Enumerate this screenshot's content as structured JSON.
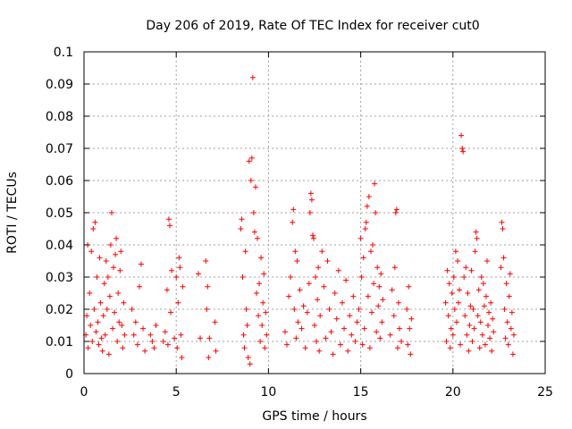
{
  "chart_data": {
    "type": "scatter",
    "title": "Day 206 of 2019, Rate Of TEC Index for receiver cut0",
    "xlabel": "GPS time / hours",
    "ylabel": "ROTI / TECUs",
    "xlim": [
      0,
      25
    ],
    "ylim": [
      0,
      0.1
    ],
    "x_ticks": [
      "0",
      "5",
      "10",
      "15",
      "20",
      "25"
    ],
    "y_ticks": [
      "0",
      "0.01",
      "0.02",
      "0.03",
      "0.04",
      "0.05",
      "0.06",
      "0.07",
      "0.08",
      "0.09",
      "0.1"
    ],
    "grid": true,
    "marker": "+",
    "color": "#ff0000",
    "series": [
      {
        "points": [
          [
            0.1,
            0.012
          ],
          [
            0.15,
            0.018
          ],
          [
            0.2,
            0.04
          ],
          [
            0.22,
            0.008
          ],
          [
            0.3,
            0.025
          ],
          [
            0.35,
            0.015
          ],
          [
            0.4,
            0.038
          ],
          [
            0.45,
            0.01
          ],
          [
            0.5,
            0.045
          ],
          [
            0.55,
            0.02
          ],
          [
            0.6,
            0.047
          ],
          [
            0.65,
            0.013
          ],
          [
            0.7,
            0.03
          ],
          [
            0.75,
            0.016
          ],
          [
            0.8,
            0.009
          ],
          [
            0.85,
            0.036
          ],
          [
            0.9,
            0.022
          ],
          [
            0.95,
            0.011
          ],
          [
            1.0,
            0.007
          ],
          [
            1.05,
            0.018
          ],
          [
            1.1,
            0.028
          ],
          [
            1.15,
            0.012
          ],
          [
            1.2,
            0.035
          ],
          [
            1.25,
            0.02
          ],
          [
            1.3,
            0.03
          ],
          [
            1.35,
            0.006
          ],
          [
            1.4,
            0.024
          ],
          [
            1.45,
            0.04
          ],
          [
            1.5,
            0.05
          ],
          [
            1.55,
            0.014
          ],
          [
            1.6,
            0.033
          ],
          [
            1.65,
            0.019
          ],
          [
            1.7,
            0.037
          ],
          [
            1.75,
            0.042
          ],
          [
            1.8,
            0.01
          ],
          [
            1.85,
            0.025
          ],
          [
            1.9,
            0.016
          ],
          [
            1.95,
            0.032
          ],
          [
            2.0,
            0.038
          ],
          [
            2.05,
            0.015
          ],
          [
            2.1,
            0.008
          ],
          [
            2.15,
            0.022
          ],
          [
            2.2,
            0.012
          ],
          [
            2.6,
            0.02
          ],
          [
            2.7,
            0.012
          ],
          [
            2.8,
            0.016
          ],
          [
            2.9,
            0.009
          ],
          [
            3.0,
            0.027
          ],
          [
            3.1,
            0.034
          ],
          [
            3.2,
            0.014
          ],
          [
            3.3,
            0.007
          ],
          [
            3.6,
            0.012
          ],
          [
            3.7,
            0.01
          ],
          [
            3.8,
            0.008
          ],
          [
            3.9,
            0.015
          ],
          [
            4.3,
            0.01
          ],
          [
            4.4,
            0.013
          ],
          [
            4.5,
            0.026
          ],
          [
            4.55,
            0.009
          ],
          [
            4.6,
            0.048
          ],
          [
            4.65,
            0.046
          ],
          [
            4.7,
            0.019
          ],
          [
            4.75,
            0.032
          ],
          [
            4.9,
            0.011
          ],
          [
            5.0,
            0.03
          ],
          [
            5.05,
            0.008
          ],
          [
            5.1,
            0.022
          ],
          [
            5.15,
            0.036
          ],
          [
            5.2,
            0.033
          ],
          [
            5.25,
            0.012
          ],
          [
            5.3,
            0.005
          ],
          [
            5.35,
            0.027
          ],
          [
            6.2,
            0.031
          ],
          [
            6.3,
            0.011
          ],
          [
            6.6,
            0.035
          ],
          [
            6.65,
            0.02
          ],
          [
            6.7,
            0.027
          ],
          [
            6.75,
            0.005
          ],
          [
            6.8,
            0.011
          ],
          [
            7.1,
            0.016
          ],
          [
            7.15,
            0.007
          ],
          [
            8.5,
            0.045
          ],
          [
            8.55,
            0.048
          ],
          [
            8.6,
            0.03
          ],
          [
            8.65,
            0.012
          ],
          [
            8.7,
            0.008
          ],
          [
            8.75,
            0.038
          ],
          [
            8.8,
            0.02
          ],
          [
            8.85,
            0.015
          ],
          [
            8.9,
            0.005
          ],
          [
            8.95,
            0.066
          ],
          [
            9.0,
            0.003
          ],
          [
            9.05,
            0.06
          ],
          [
            9.1,
            0.067
          ],
          [
            9.15,
            0.092
          ],
          [
            9.2,
            0.05
          ],
          [
            9.25,
            0.044
          ],
          [
            9.3,
            0.058
          ],
          [
            9.35,
            0.025
          ],
          [
            9.4,
            0.042
          ],
          [
            9.45,
            0.018
          ],
          [
            9.5,
            0.028
          ],
          [
            9.55,
            0.01
          ],
          [
            9.6,
            0.036
          ],
          [
            9.65,
            0.015
          ],
          [
            9.7,
            0.022
          ],
          [
            9.75,
            0.031
          ],
          [
            9.8,
            0.008
          ],
          [
            9.85,
            0.019
          ],
          [
            9.9,
            0.012
          ],
          [
            10.9,
            0.013
          ],
          [
            11.0,
            0.009
          ],
          [
            11.1,
            0.024
          ],
          [
            11.2,
            0.03
          ],
          [
            11.3,
            0.047
          ],
          [
            11.35,
            0.051
          ],
          [
            11.4,
            0.02
          ],
          [
            11.45,
            0.038
          ],
          [
            11.5,
            0.011
          ],
          [
            11.55,
            0.035
          ],
          [
            11.6,
            0.016
          ],
          [
            11.7,
            0.026
          ],
          [
            11.8,
            0.014
          ],
          [
            11.9,
            0.021
          ],
          [
            12.0,
            0.008
          ],
          [
            12.1,
            0.019
          ],
          [
            12.2,
            0.028
          ],
          [
            12.25,
            0.05
          ],
          [
            12.3,
            0.056
          ],
          [
            12.35,
            0.054
          ],
          [
            12.4,
            0.043
          ],
          [
            12.45,
            0.042
          ],
          [
            12.5,
            0.015
          ],
          [
            12.55,
            0.03
          ],
          [
            12.6,
            0.01
          ],
          [
            12.65,
            0.023
          ],
          [
            12.7,
            0.033
          ],
          [
            12.75,
            0.007
          ],
          [
            12.8,
            0.018
          ],
          [
            12.9,
            0.038
          ],
          [
            13.0,
            0.027
          ],
          [
            13.1,
            0.011
          ],
          [
            13.2,
            0.035
          ],
          [
            13.3,
            0.02
          ],
          [
            13.4,
            0.013
          ],
          [
            13.5,
            0.006
          ],
          [
            13.6,
            0.025
          ],
          [
            13.7,
            0.017
          ],
          [
            13.8,
            0.032
          ],
          [
            13.9,
            0.009
          ],
          [
            14.0,
            0.022
          ],
          [
            14.1,
            0.014
          ],
          [
            14.2,
            0.029
          ],
          [
            14.3,
            0.007
          ],
          [
            14.4,
            0.018
          ],
          [
            14.5,
            0.012
          ],
          [
            14.6,
            0.024
          ],
          [
            14.7,
            0.01
          ],
          [
            14.8,
            0.016
          ],
          [
            14.9,
            0.02
          ],
          [
            15.0,
            0.042
          ],
          [
            15.05,
            0.03
          ],
          [
            15.1,
            0.009
          ],
          [
            15.15,
            0.036
          ],
          [
            15.2,
            0.014
          ],
          [
            15.25,
            0.045
          ],
          [
            15.3,
            0.047
          ],
          [
            15.35,
            0.052
          ],
          [
            15.4,
            0.024
          ],
          [
            15.45,
            0.055
          ],
          [
            15.5,
            0.008
          ],
          [
            15.55,
            0.038
          ],
          [
            15.6,
            0.019
          ],
          [
            15.65,
            0.04
          ],
          [
            15.7,
            0.028
          ],
          [
            15.75,
            0.059
          ],
          [
            15.8,
            0.05
          ],
          [
            15.85,
            0.013
          ],
          [
            15.9,
            0.033
          ],
          [
            15.95,
            0.021
          ],
          [
            16.0,
            0.027
          ],
          [
            16.05,
            0.011
          ],
          [
            16.1,
            0.031
          ],
          [
            16.15,
            0.016
          ],
          [
            16.2,
            0.023
          ],
          [
            16.6,
            0.012
          ],
          [
            16.7,
            0.026
          ],
          [
            16.8,
            0.018
          ],
          [
            16.85,
            0.033
          ],
          [
            16.9,
            0.05
          ],
          [
            16.95,
            0.051
          ],
          [
            17.0,
            0.008
          ],
          [
            17.05,
            0.022
          ],
          [
            17.1,
            0.014
          ],
          [
            17.2,
            0.01
          ],
          [
            17.5,
            0.02
          ],
          [
            17.55,
            0.009
          ],
          [
            17.6,
            0.027
          ],
          [
            17.65,
            0.014
          ],
          [
            17.7,
            0.006
          ],
          [
            17.75,
            0.017
          ],
          [
            19.6,
            0.022
          ],
          [
            19.65,
            0.01
          ],
          [
            19.7,
            0.032
          ],
          [
            19.75,
            0.018
          ],
          [
            19.8,
            0.028
          ],
          [
            19.85,
            0.008
          ],
          [
            19.9,
            0.014
          ],
          [
            19.95,
            0.025
          ],
          [
            20.0,
            0.012
          ],
          [
            20.05,
            0.03
          ],
          [
            20.1,
            0.02
          ],
          [
            20.15,
            0.038
          ],
          [
            20.2,
            0.016
          ],
          [
            20.25,
            0.035
          ],
          [
            20.3,
            0.022
          ],
          [
            20.35,
            0.026
          ],
          [
            20.4,
            0.009
          ],
          [
            20.45,
            0.074
          ],
          [
            20.5,
            0.07
          ],
          [
            20.55,
            0.069
          ],
          [
            20.6,
            0.03
          ],
          [
            20.65,
            0.018
          ],
          [
            20.7,
            0.033
          ],
          [
            20.75,
            0.012
          ],
          [
            20.8,
            0.025
          ],
          [
            20.85,
            0.007
          ],
          [
            20.9,
            0.015
          ],
          [
            20.95,
            0.021
          ],
          [
            21.0,
            0.032
          ],
          [
            21.05,
            0.01
          ],
          [
            21.1,
            0.02
          ],
          [
            21.15,
            0.014
          ],
          [
            21.2,
            0.038
          ],
          [
            21.25,
            0.044
          ],
          [
            21.3,
            0.042
          ],
          [
            21.35,
            0.018
          ],
          [
            21.4,
            0.026
          ],
          [
            21.45,
            0.008
          ],
          [
            21.5,
            0.016
          ],
          [
            21.55,
            0.03
          ],
          [
            21.6,
            0.012
          ],
          [
            21.65,
            0.028
          ],
          [
            21.7,
            0.021
          ],
          [
            21.75,
            0.009
          ],
          [
            21.8,
            0.024
          ],
          [
            21.85,
            0.035
          ],
          [
            21.9,
            0.015
          ],
          [
            21.95,
            0.019
          ],
          [
            22.0,
            0.011
          ],
          [
            22.05,
            0.022
          ],
          [
            22.1,
            0.007
          ],
          [
            22.15,
            0.017
          ],
          [
            22.2,
            0.013
          ],
          [
            22.6,
            0.033
          ],
          [
            22.65,
            0.047
          ],
          [
            22.7,
            0.045
          ],
          [
            22.75,
            0.036
          ],
          [
            22.8,
            0.02
          ],
          [
            22.85,
            0.011
          ],
          [
            22.9,
            0.028
          ],
          [
            22.95,
            0.016
          ],
          [
            23.0,
            0.009
          ],
          [
            23.05,
            0.024
          ],
          [
            23.1,
            0.031
          ],
          [
            23.15,
            0.014
          ],
          [
            23.2,
            0.019
          ],
          [
            23.25,
            0.006
          ],
          [
            23.3,
            0.012
          ]
        ]
      }
    ]
  }
}
